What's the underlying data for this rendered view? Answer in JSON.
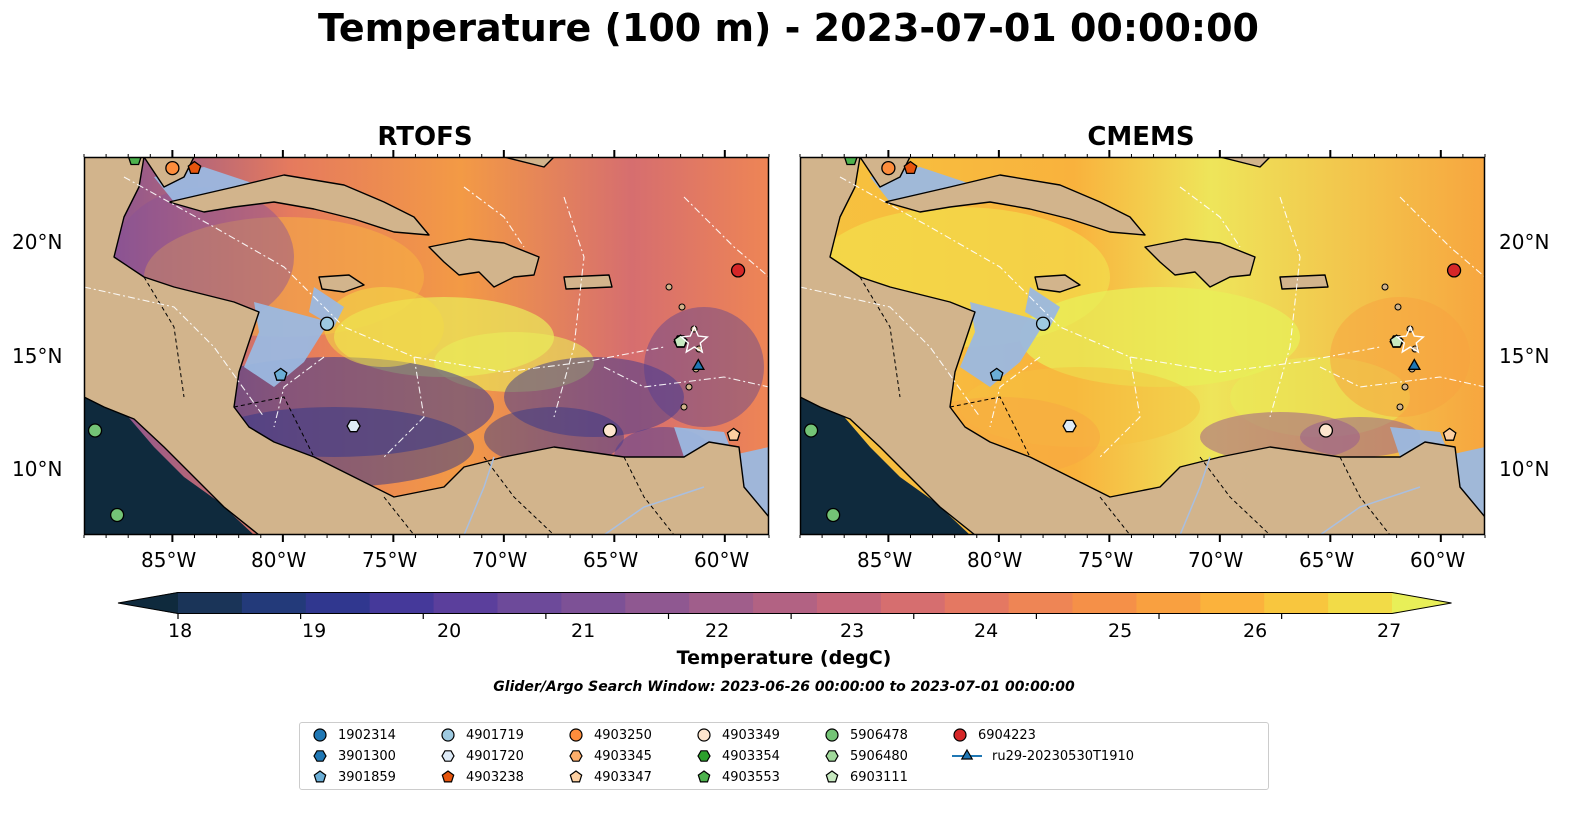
{
  "title": "Temperature (100 m) - 2023-07-01 00:00:00",
  "panels": [
    {
      "title": "RTOFS",
      "ocean": "rtofs"
    },
    {
      "title": "CMEMS",
      "ocean": "cmems"
    }
  ],
  "axes": {
    "lon_ticks": [
      "85°W",
      "80°W",
      "75°W",
      "70°W",
      "65°W",
      "60°W"
    ],
    "lat_ticks": [
      "20°N",
      "15°N",
      "10°N"
    ],
    "lon_range": [
      -89,
      -58
    ],
    "lat_range": [
      7,
      24
    ]
  },
  "colorbar": {
    "label": "Temperature (degC)",
    "ticks": [
      "18",
      "19",
      "20",
      "21",
      "22",
      "23",
      "24",
      "25",
      "26",
      "27"
    ],
    "colors": [
      "#0f2a3d",
      "#1a3458",
      "#233a7a",
      "#30378f",
      "#45399a",
      "#5b3f9c",
      "#6d4a9a",
      "#7d5196",
      "#8f5891",
      "#a05e8b",
      "#b26283",
      "#c4667a",
      "#d66e6f",
      "#e47862",
      "#ee8555",
      "#f59048",
      "#f9a040",
      "#fbb23c",
      "#f8c63e",
      "#f2db47",
      "#e8ef58"
    ]
  },
  "search_window": "Glider/Argo Search Window: 2023-06-26 00:00:00 to 2023-07-01 00:00:00",
  "legend": [
    {
      "label": "1902314",
      "marker": "circle",
      "color": "#1f77b4"
    },
    {
      "label": "3901300",
      "marker": "hexagon",
      "color": "#1f77b4"
    },
    {
      "label": "3901859",
      "marker": "pentagon",
      "color": "#6baed6"
    },
    {
      "label": "4901719",
      "marker": "circle",
      "color": "#9ecae1"
    },
    {
      "label": "4901720",
      "marker": "hexagon",
      "color": "#deebf7"
    },
    {
      "label": "4903238",
      "marker": "pentagon",
      "color": "#e6550d"
    },
    {
      "label": "4903250",
      "marker": "circle",
      "color": "#fd8d3c"
    },
    {
      "label": "4903345",
      "marker": "hexagon",
      "color": "#fdae6b"
    },
    {
      "label": "4903347",
      "marker": "pentagon",
      "color": "#fdd0a2"
    },
    {
      "label": "4903349",
      "marker": "circle",
      "color": "#fee6ce"
    },
    {
      "label": "4903354",
      "marker": "hexagon",
      "color": "#2ca02c"
    },
    {
      "label": "4903553",
      "marker": "pentagon",
      "color": "#4db24d"
    },
    {
      "label": "5906478",
      "marker": "circle",
      "color": "#74c476"
    },
    {
      "label": "5906480",
      "marker": "hexagon",
      "color": "#a1d99b"
    },
    {
      "label": "6903111",
      "marker": "pentagon",
      "color": "#c7e9c0"
    },
    {
      "label": "6904223",
      "marker": "circle",
      "color": "#d62728"
    },
    {
      "label": "ru29-20230530T1910",
      "marker": "triangle",
      "color": "#1f77b4"
    }
  ],
  "platforms": [
    {
      "id": "4903250",
      "lon": -85.0,
      "lat": 23.5
    },
    {
      "id": "4903238",
      "lon": -84.0,
      "lat": 23.5
    },
    {
      "id": "4903553",
      "lon": -86.7,
      "lat": 23.9
    },
    {
      "id": "4901719",
      "lon": -78.0,
      "lat": 16.5
    },
    {
      "id": "3901859",
      "lon": -80.1,
      "lat": 14.2
    },
    {
      "id": "4901720",
      "lon": -76.8,
      "lat": 11.9
    },
    {
      "id": "4903349",
      "lon": -65.2,
      "lat": 11.7
    },
    {
      "id": "5906480",
      "lon": -62.0,
      "lat": 15.7
    },
    {
      "id": "6903111",
      "lon": -62.0,
      "lat": 15.7
    },
    {
      "id": "6904223",
      "lon": -59.4,
      "lat": 18.9
    },
    {
      "id": "4903347",
      "lon": -59.6,
      "lat": 11.5
    },
    {
      "id": "5906478",
      "lon": -88.5,
      "lat": 11.7
    },
    {
      "id": "5906478",
      "lon": -87.5,
      "lat": 7.9
    },
    {
      "id": "ru29-20230530T1910",
      "lon": -61.2,
      "lat": 14.6
    }
  ]
}
